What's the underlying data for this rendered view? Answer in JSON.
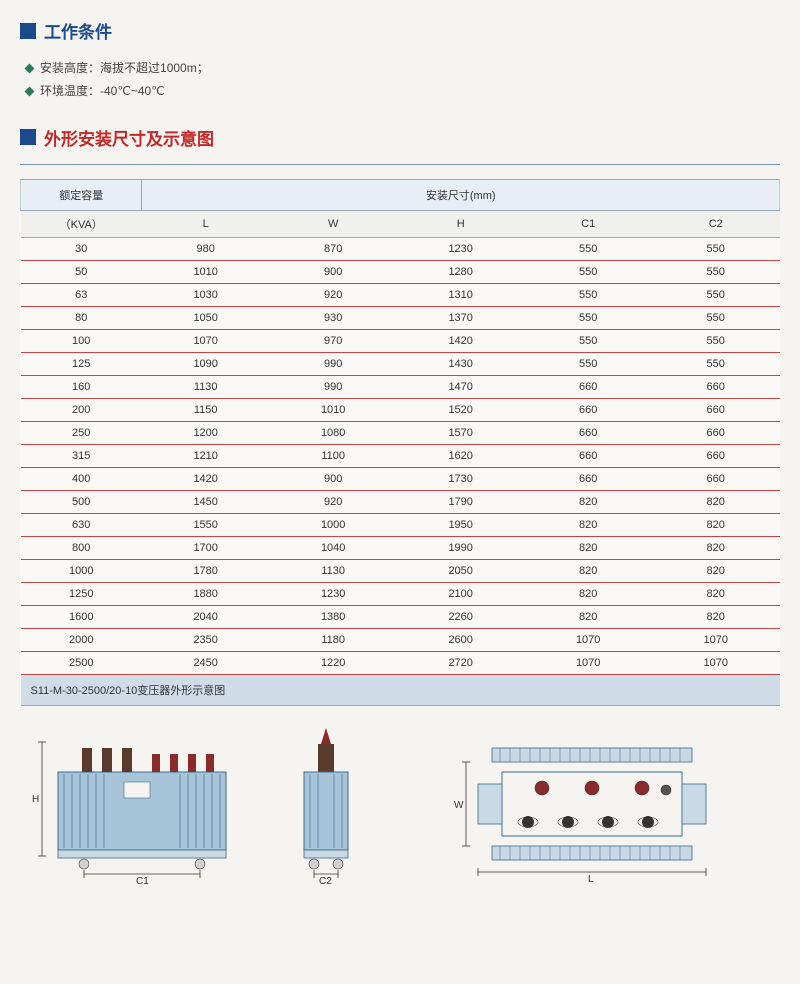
{
  "section1": {
    "title": "工作条件",
    "bar_color": "#1a4a8c",
    "title_color": "#1a4a8c",
    "bullets": [
      {
        "label": "安装高度：",
        "value": "海拔不超过1000m；"
      },
      {
        "label": "环境温度：",
        "value": "-40℃~40℃"
      }
    ]
  },
  "section2": {
    "title": "外形安装尺寸及示意图",
    "bar_color": "#1a4a8c",
    "title_color": "#c52828"
  },
  "table": {
    "header_capacity": "额定容量",
    "header_dims": "安装尺寸(mm)",
    "unit_row": [
      "（KVA）",
      "L",
      "W",
      "H",
      "C1",
      "C2"
    ],
    "rows": [
      [
        "30",
        "980",
        "870",
        "1230",
        "550",
        "550"
      ],
      [
        "50",
        "1010",
        "900",
        "1280",
        "550",
        "550"
      ],
      [
        "63",
        "1030",
        "920",
        "1310",
        "550",
        "550"
      ],
      [
        "80",
        "1050",
        "930",
        "1370",
        "550",
        "550"
      ],
      [
        "100",
        "1070",
        "970",
        "1420",
        "550",
        "550"
      ],
      [
        "125",
        "1090",
        "990",
        "1430",
        "550",
        "550"
      ],
      [
        "160",
        "1130",
        "990",
        "1470",
        "660",
        "660"
      ],
      [
        "200",
        "1150",
        "1010",
        "1520",
        "660",
        "660"
      ],
      [
        "250",
        "1200",
        "1080",
        "1570",
        "660",
        "660"
      ],
      [
        "315",
        "1210",
        "1100",
        "1620",
        "660",
        "660"
      ],
      [
        "400",
        "1420",
        "900",
        "1730",
        "660",
        "660"
      ],
      [
        "500",
        "1450",
        "920",
        "1790",
        "820",
        "820"
      ],
      [
        "630",
        "1550",
        "1000",
        "1950",
        "820",
        "820"
      ],
      [
        "800",
        "1700",
        "1040",
        "1990",
        "820",
        "820"
      ],
      [
        "1000",
        "1780",
        "1130",
        "2050",
        "820",
        "820"
      ],
      [
        "1250",
        "1880",
        "1230",
        "2100",
        "820",
        "820"
      ],
      [
        "1600",
        "2040",
        "1380",
        "2260",
        "820",
        "820"
      ],
      [
        "2000",
        "2350",
        "1180",
        "2600",
        "1070",
        "1070"
      ],
      [
        "2500",
        "2450",
        "1220",
        "2720",
        "1070",
        "1070"
      ]
    ],
    "caption": "S11-M-30-2500/20-10变压器外形示意图"
  },
  "diagram": {
    "labels": {
      "H": "H",
      "C1": "C1",
      "C2": "C2",
      "W": "W",
      "L": "L"
    },
    "colors": {
      "body": "#a8c4d8",
      "body_stroke": "#3a6a8c",
      "bushing_dark": "#5a3a2a",
      "bushing_red": "#8a2a2a",
      "dim_line": "#333333"
    }
  }
}
